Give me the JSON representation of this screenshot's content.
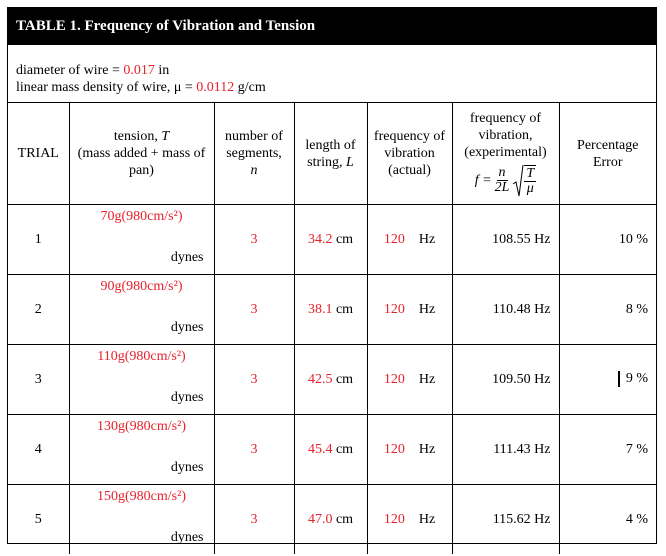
{
  "title": "TABLE 1.   Frequency of Vibration and Tension",
  "info": {
    "diameter_label": "diameter of wire = ",
    "diameter_value": "0.017",
    "diameter_unit": " in",
    "density_label": "linear mass density of wire,  μ = ",
    "density_value": "0.0112",
    "density_unit": " g/cm"
  },
  "headers": {
    "trial": "TRIAL",
    "tension_1": "tension, ",
    "tension_sym": "T",
    "tension_2": "(mass added + mass of pan)",
    "segments_1": "number of segments,",
    "segments_sym": "n",
    "length_1": "length of string, ",
    "length_sym": "L",
    "freq_actual": "frequency of vibration (actual)",
    "freq_exp": "frequency of vibration, (experimental)",
    "formula_f": "f =",
    "formula_num": "n",
    "formula_den": "2L",
    "formula_rnum": "T",
    "formula_rden": "μ",
    "percent": "Percentage Error"
  },
  "rows": [
    {
      "trial": "1",
      "mass": "70g(980cm/s²)",
      "unit": "dynes",
      "segments": "3",
      "length": "34.2",
      "length_unit": " cm",
      "freq": "120",
      "freq_unit": "Hz",
      "exp": "108.55 Hz",
      "error": "10 %"
    },
    {
      "trial": "2",
      "mass": "90g(980cm/s²)",
      "unit": "dynes",
      "segments": "3",
      "length": "38.1",
      "length_unit": " cm",
      "freq": "120",
      "freq_unit": "Hz",
      "exp": "110.48 Hz",
      "error": "8 %"
    },
    {
      "trial": "3",
      "mass": "110g(980cm/s²)",
      "unit": "dynes",
      "segments": "3",
      "length": "42.5",
      "length_unit": " cm",
      "freq": "120",
      "freq_unit": "Hz",
      "exp": "109.50 Hz",
      "error": "9 %"
    },
    {
      "trial": "4",
      "mass": "130g(980cm/s²)",
      "unit": "dynes",
      "segments": "3",
      "length": "45.4",
      "length_unit": " cm",
      "freq": "120",
      "freq_unit": "Hz",
      "exp": "111.43 Hz",
      "error": "7 %"
    },
    {
      "trial": "5",
      "mass": "150g(980cm/s²)",
      "unit": "dynes",
      "segments": "3",
      "length": "47.0",
      "length_unit": " cm",
      "freq": "120",
      "freq_unit": "Hz",
      "exp": "115.62 Hz",
      "error": "4 %"
    }
  ],
  "colors": {
    "accent": "#e8212b",
    "title_bg": "#000000"
  }
}
